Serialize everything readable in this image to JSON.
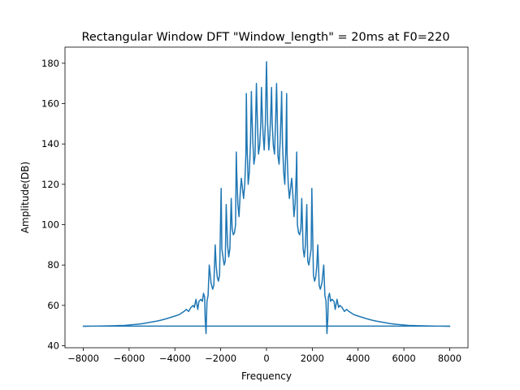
{
  "chart_data": {
    "type": "line",
    "title": "Rectangular Window DFT \"Window_length\" = 20ms at F0=220",
    "xlabel": "Frequency",
    "ylabel": "Amplitude(DB)",
    "xlim": [
      -8800,
      8800
    ],
    "ylim": [
      39,
      188
    ],
    "xticks": [
      -8000,
      -6000,
      -4000,
      -2000,
      0,
      2000,
      4000,
      6000,
      8000
    ],
    "xtick_labels": [
      "−8000",
      "−6000",
      "−4000",
      "−2000",
      "0",
      "2000",
      "4000",
      "6000",
      "8000"
    ],
    "yticks": [
      40,
      60,
      80,
      100,
      120,
      140,
      160,
      180
    ],
    "ytick_labels": [
      "40",
      "60",
      "80",
      "100",
      "120",
      "140",
      "160",
      "180"
    ],
    "grid": false,
    "line_color": "#1f77b4",
    "series": [
      {
        "x": [
          0,
          50,
          100,
          150,
          200,
          220,
          250,
          300,
          350,
          400,
          440,
          480,
          500,
          550,
          600,
          650,
          660,
          700,
          750,
          800,
          850,
          880,
          900,
          950,
          1000,
          1050,
          1100,
          1150,
          1200,
          1250,
          1300,
          1320,
          1350,
          1400,
          1450,
          1500,
          1540,
          1600,
          1650,
          1700,
          1760,
          1800,
          1850,
          1900,
          1950,
          1980,
          2050,
          2100,
          2150,
          2200,
          2240,
          2300,
          2350,
          2420,
          2500,
          2550,
          2600,
          2640,
          2680,
          2700,
          2750,
          2800,
          2860,
          2950,
          3000,
          3080,
          3150,
          3200,
          3300,
          3400,
          3500,
          3600,
          3800,
          4000,
          4200,
          4400,
          4600,
          4800,
          5000,
          5200,
          5400,
          5600,
          5800,
          6000,
          6200,
          6400,
          6600,
          6800,
          7000,
          7200,
          7400,
          7600,
          7800,
          8000,
          8000,
          0,
          -8000,
          -8000,
          -7800,
          -7600,
          -7400,
          -7200,
          -7000,
          -6800,
          -6600,
          -6400,
          -6200,
          -6000,
          -5800,
          -5600,
          -5400,
          -5200,
          -5000,
          -4800,
          -4600,
          -4400,
          -4200,
          -4000,
          -3800,
          -3600,
          -3500,
          -3400,
          -3300,
          -3200,
          -3150,
          -3080,
          -3000,
          -2950,
          -2860,
          -2800,
          -2750,
          -2700,
          -2680,
          -2640,
          -2600,
          -2550,
          -2500,
          -2420,
          -2350,
          -2300,
          -2240,
          -2200,
          -2150,
          -2100,
          -2050,
          -1980,
          -1950,
          -1900,
          -1850,
          -1800,
          -1760,
          -1700,
          -1650,
          -1600,
          -1540,
          -1500,
          -1450,
          -1400,
          -1350,
          -1320,
          -1300,
          -1250,
          -1200,
          -1150,
          -1100,
          -1050,
          -1000,
          -950,
          -900,
          -880,
          -850,
          -800,
          -750,
          -700,
          -660,
          -650,
          -600,
          -550,
          -500,
          -480,
          -440,
          -400,
          -350,
          -300,
          -250,
          -220,
          -200,
          -150,
          -100,
          -50,
          0
        ],
        "y": [
          181,
          150,
          137,
          145,
          160,
          168,
          150,
          139,
          135,
          152,
          170,
          148,
          134,
          130,
          142,
          160,
          166,
          140,
          126,
          120,
          140,
          165,
          135,
          120,
          113,
          118,
          123,
          115,
          104,
          110,
          126,
          136,
          100,
          96,
          95,
          98,
          113,
          88,
          84,
          90,
          110,
          82,
          80,
          84,
          88,
          118,
          75,
          72,
          74,
          80,
          90,
          70,
          68,
          71,
          80,
          65,
          62,
          46,
          54,
          64,
          66,
          62,
          63,
          62,
          58,
          63,
          59,
          60,
          59,
          57,
          58,
          57,
          55.5,
          54.7,
          54.0,
          53.3,
          52.7,
          52.2,
          51.8,
          51.4,
          51.0,
          50.7,
          50.5,
          50.3,
          50.1,
          50.0,
          49.9,
          49.85,
          49.8,
          49.75,
          49.7,
          49.7,
          49.65,
          49.6,
          49.7,
          49.7,
          49.7,
          49.6,
          49.65,
          49.7,
          49.7,
          49.75,
          49.8,
          49.85,
          49.9,
          50.0,
          50.1,
          50.3,
          50.5,
          50.7,
          51.0,
          51.4,
          51.8,
          52.2,
          52.7,
          53.3,
          54.0,
          54.7,
          55.5,
          57,
          58,
          57,
          59,
          60,
          59,
          63,
          58,
          62,
          63,
          62,
          66,
          64,
          54,
          46,
          62,
          65,
          80,
          71,
          68,
          70,
          90,
          80,
          74,
          72,
          75,
          118,
          88,
          84,
          80,
          82,
          110,
          90,
          84,
          88,
          113,
          98,
          95,
          96,
          100,
          136,
          126,
          110,
          104,
          115,
          123,
          118,
          113,
          120,
          135,
          165,
          140,
          120,
          126,
          140,
          166,
          160,
          142,
          130,
          134,
          148,
          170,
          152,
          135,
          139,
          150,
          168,
          160,
          145,
          137,
          150,
          181
        ]
      }
    ]
  }
}
